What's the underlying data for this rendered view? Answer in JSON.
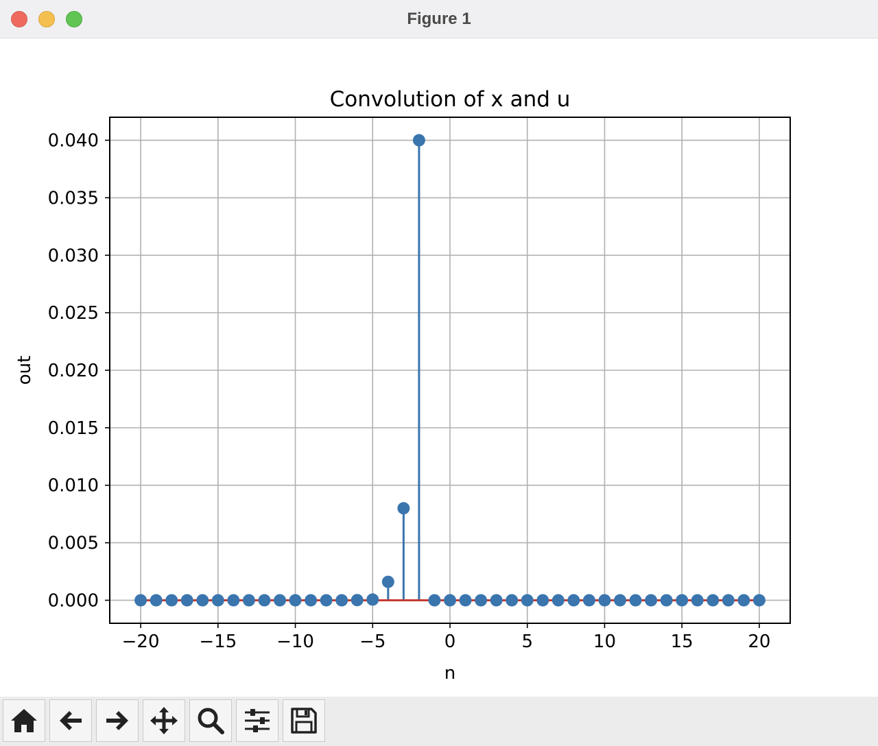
{
  "window": {
    "title": "Figure 1"
  },
  "toolbar": {
    "buttons": [
      {
        "name": "home",
        "icon": "home-icon"
      },
      {
        "name": "back",
        "icon": "arrow-left-icon"
      },
      {
        "name": "forward",
        "icon": "arrow-right-icon"
      },
      {
        "name": "pan",
        "icon": "move-icon"
      },
      {
        "name": "zoom",
        "icon": "zoom-icon"
      },
      {
        "name": "configure-subplots",
        "icon": "sliders-icon"
      },
      {
        "name": "save",
        "icon": "save-icon"
      }
    ]
  },
  "colors": {
    "stem": "#3a75ae",
    "baseline": "#c43a31",
    "grid": "#b0b0b0",
    "axis": "#000000"
  },
  "chart_data": {
    "type": "stem",
    "title": "Convolution of x and u",
    "xlabel": "n",
    "ylabel": "out",
    "xlim": [
      -22,
      22
    ],
    "ylim": [
      -0.002,
      0.042
    ],
    "grid": true,
    "xticks": [
      -20,
      -15,
      -10,
      -5,
      0,
      5,
      10,
      15,
      20
    ],
    "xtick_labels": [
      "−20",
      "−15",
      "−10",
      "−5",
      "0",
      "5",
      "10",
      "15",
      "20"
    ],
    "yticks": [
      0.0,
      0.005,
      0.01,
      0.015,
      0.02,
      0.025,
      0.03,
      0.035,
      0.04
    ],
    "ytick_labels": [
      "0.000",
      "0.005",
      "0.010",
      "0.015",
      "0.020",
      "0.025",
      "0.030",
      "0.035",
      "0.040"
    ],
    "x": [
      -20,
      -19,
      -18,
      -17,
      -16,
      -15,
      -14,
      -13,
      -12,
      -11,
      -10,
      -9,
      -8,
      -7,
      -6,
      -5,
      -4,
      -3,
      -2,
      -1,
      0,
      1,
      2,
      3,
      4,
      5,
      6,
      7,
      8,
      9,
      10,
      11,
      12,
      13,
      14,
      15,
      16,
      17,
      18,
      19,
      20
    ],
    "y": [
      0,
      0,
      0,
      0,
      0,
      0,
      0,
      0,
      0,
      0,
      0,
      0,
      0,
      0,
      1.28e-05,
      6.4e-05,
      0.0016,
      0.008,
      0.04,
      0,
      0,
      0,
      0,
      0,
      0,
      0,
      0,
      0,
      0,
      0,
      0,
      0,
      0,
      0,
      0,
      0,
      0,
      0,
      0,
      0,
      0
    ],
    "baseline": 0
  }
}
